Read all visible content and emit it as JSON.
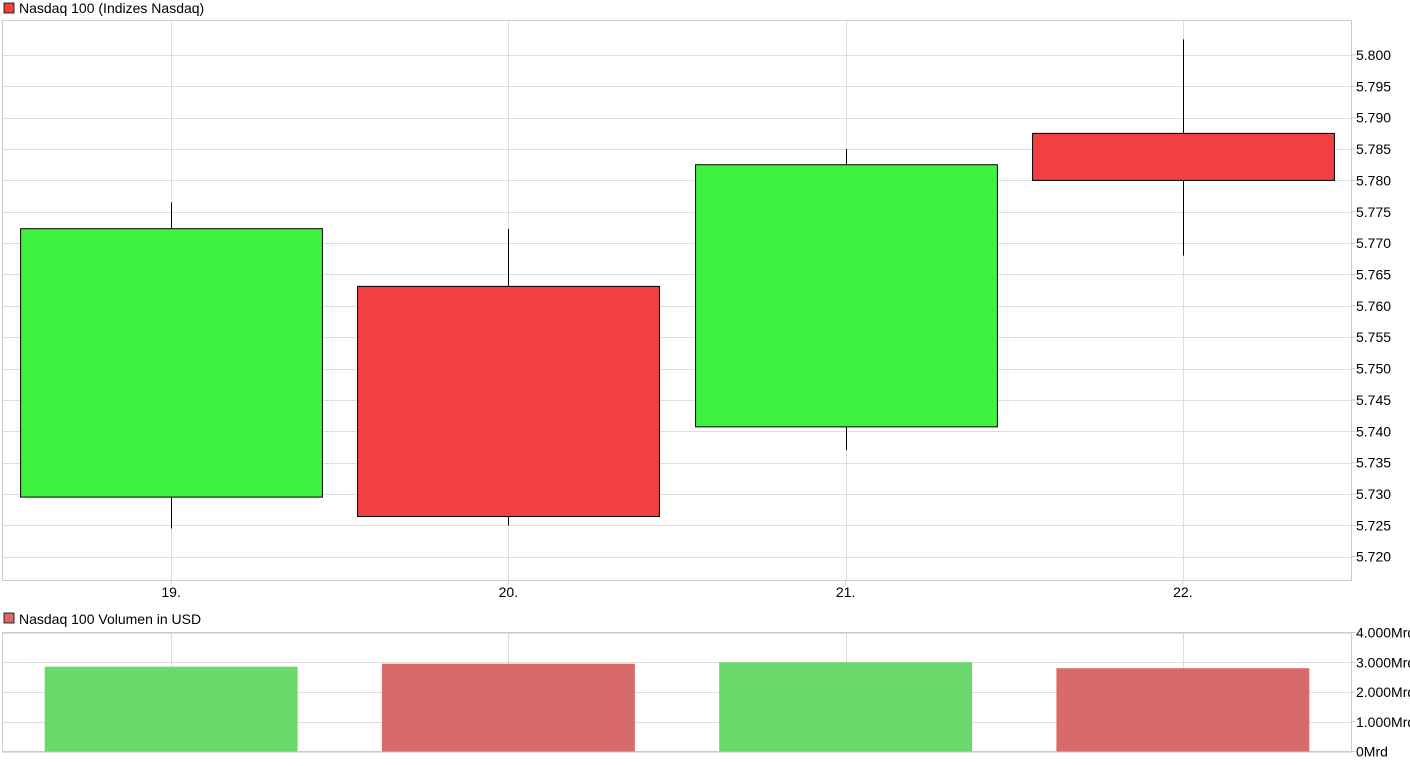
{
  "colors": {
    "up": "#3ff23f",
    "down": "#f24040",
    "volume_up": "#6ad86a",
    "volume_down": "#d86a6a",
    "grid": "#dddddd",
    "axis": "#cccccc",
    "wick": "#000000"
  },
  "chart_data": [
    {
      "type": "candlestick",
      "title": "Nasdaq 100 (Indizes Nasdaq)",
      "legend_color": "#f24040",
      "categories": [
        "19.",
        "20.",
        "21.",
        "22."
      ],
      "ohlc": [
        {
          "open": 5.7295,
          "high": 5.7765,
          "low": 5.7245,
          "close": 5.7723,
          "direction": "up"
        },
        {
          "open": 5.7631,
          "high": 5.7723,
          "low": 5.725,
          "close": 5.7264,
          "direction": "down"
        },
        {
          "open": 5.7407,
          "high": 5.785,
          "low": 5.737,
          "close": 5.7825,
          "direction": "up"
        },
        {
          "open": 5.7875,
          "high": 5.8025,
          "low": 5.768,
          "close": 5.78,
          "direction": "down"
        }
      ],
      "ylim": [
        5.7162,
        5.8055
      ],
      "yticks": [
        5.72,
        5.725,
        5.73,
        5.735,
        5.74,
        5.745,
        5.75,
        5.755,
        5.76,
        5.765,
        5.77,
        5.775,
        5.78,
        5.785,
        5.79,
        5.795,
        5.8
      ],
      "ytick_labels": [
        "5.720",
        "5.725",
        "5.730",
        "5.735",
        "5.740",
        "5.745",
        "5.750",
        "5.755",
        "5.760",
        "5.765",
        "5.770",
        "5.775",
        "5.780",
        "5.785",
        "5.790",
        "5.795",
        "5.800"
      ],
      "grid": true,
      "yaxis_side": "right"
    },
    {
      "type": "bar",
      "title": "Nasdaq 100 Volumen in USD",
      "legend_color": "#d86a6a",
      "categories": [
        "19.",
        "20.",
        "21.",
        "22."
      ],
      "values": [
        2850,
        2950,
        3000,
        2800
      ],
      "directions": [
        "up",
        "down",
        "up",
        "down"
      ],
      "unit": "Mrd",
      "ylim": [
        0,
        4000
      ],
      "yticks": [
        0,
        1000,
        2000,
        3000,
        4000
      ],
      "ytick_labels": [
        "0Mrd",
        "1.000Mrd",
        "2.000Mrd",
        "3.000Mrd",
        "4.000Mrd"
      ],
      "grid": true,
      "yaxis_side": "right"
    }
  ]
}
